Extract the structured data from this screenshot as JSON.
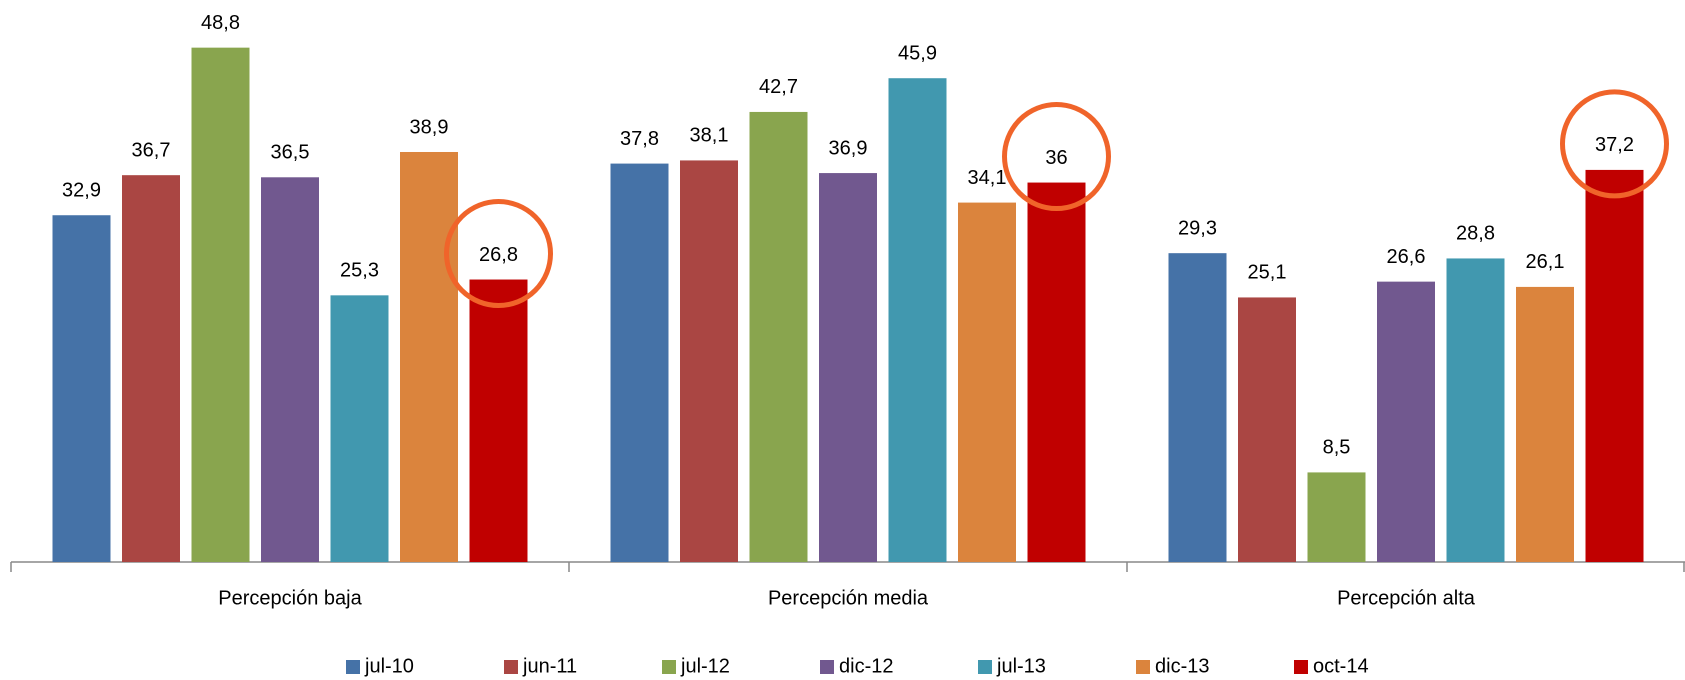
{
  "chart_data": {
    "type": "bar",
    "categories": [
      "Percepción baja",
      "Percepción media",
      "Percepción alta"
    ],
    "series": [
      {
        "name": "jul-10",
        "color": "#4572a7",
        "values": [
          32.9,
          37.8,
          29.3
        ],
        "value_labels": [
          "32,9",
          "37,8",
          "29,3"
        ]
      },
      {
        "name": "jun-11",
        "color": "#aa4643",
        "values": [
          36.7,
          38.1,
          25.1
        ],
        "value_labels": [
          "36,7",
          "38,1",
          "25,1"
        ]
      },
      {
        "name": "jul-12",
        "color": "#89a54e",
        "values": [
          48.8,
          42.7,
          8.5
        ],
        "value_labels": [
          "48,8",
          "42,7",
          "8,5"
        ]
      },
      {
        "name": "dic-12",
        "color": "#71588f",
        "values": [
          36.5,
          36.9,
          26.6
        ],
        "value_labels": [
          "36,5",
          "36,9",
          "26,6"
        ]
      },
      {
        "name": "jul-13",
        "color": "#4198af",
        "values": [
          25.3,
          45.9,
          28.8
        ],
        "value_labels": [
          "25,3",
          "45,9",
          "28,8"
        ]
      },
      {
        "name": "dic-13",
        "color": "#db843d",
        "values": [
          38.9,
          34.1,
          26.1
        ],
        "value_labels": [
          "38,9",
          "34,1",
          "26,1"
        ]
      },
      {
        "name": "oct-14",
        "color": "#c00000",
        "values": [
          26.8,
          36,
          37.2
        ],
        "value_labels": [
          "26,8",
          "36",
          "37,2"
        ]
      }
    ],
    "ylim": [
      0,
      50
    ],
    "legend": "bottom"
  }
}
